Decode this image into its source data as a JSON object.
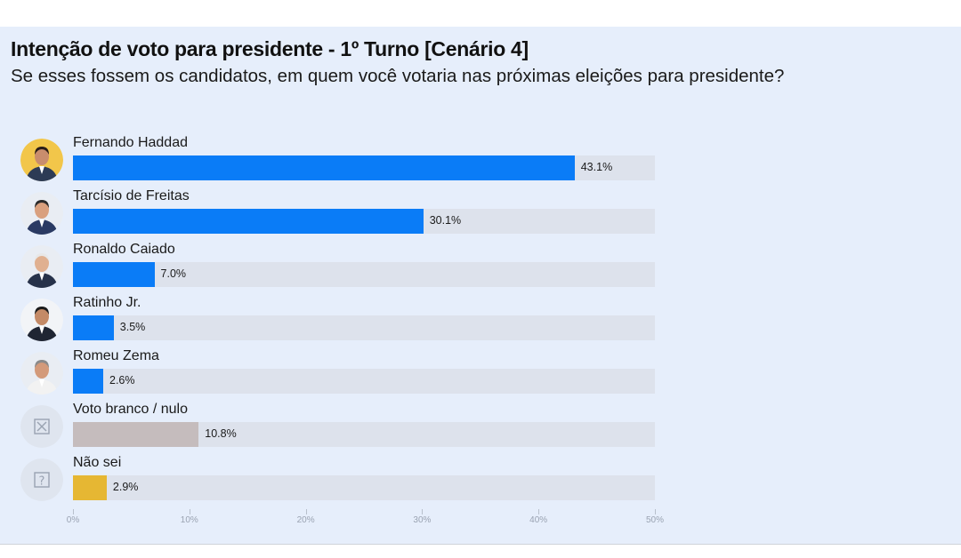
{
  "title": "Intenção de voto para presidente - 1º Turno [Cenário 4]",
  "subtitle": "Se esses fossem os candidatos, em quem você votaria nas próximas eleições para presidente?",
  "colors": {
    "candidate": "#0a7cf7",
    "blank": "#c5bcbd",
    "unknown": "#e6b733",
    "track": "#dde2ec",
    "background": "#e6eefb"
  },
  "chart_data": {
    "type": "bar",
    "orientation": "horizontal",
    "title": "Intenção de voto para presidente - 1º Turno [Cenário 4]",
    "subtitle": "Se esses fossem os candidatos, em quem você votaria nas próximas eleições para presidente?",
    "categories": [
      "Fernando Haddad",
      "Tarcísio de Freitas",
      "Ronaldo Caiado",
      "Ratinho Jr.",
      "Romeu Zema",
      "Voto branco / nulo",
      "Não sei"
    ],
    "values": [
      43.1,
      30.1,
      7.0,
      3.5,
      2.6,
      10.8,
      2.9
    ],
    "value_labels": [
      "43.1%",
      "30.1%",
      "7.0%",
      "3.5%",
      "2.6%",
      "10.8%",
      "2.9%"
    ],
    "bar_colors": [
      "#0a7cf7",
      "#0a7cf7",
      "#0a7cf7",
      "#0a7cf7",
      "#0a7cf7",
      "#c5bcbd",
      "#e6b733"
    ],
    "icons": [
      "photo-haddad",
      "photo-tarcisio",
      "photo-caiado",
      "photo-ratinho",
      "photo-zema",
      "blank-vote-icon",
      "question-icon"
    ],
    "xlim": [
      0,
      50
    ],
    "xticks": [
      "0%",
      "10%",
      "20%",
      "30%",
      "40%",
      "50%"
    ],
    "grid": false,
    "legend": "none"
  }
}
